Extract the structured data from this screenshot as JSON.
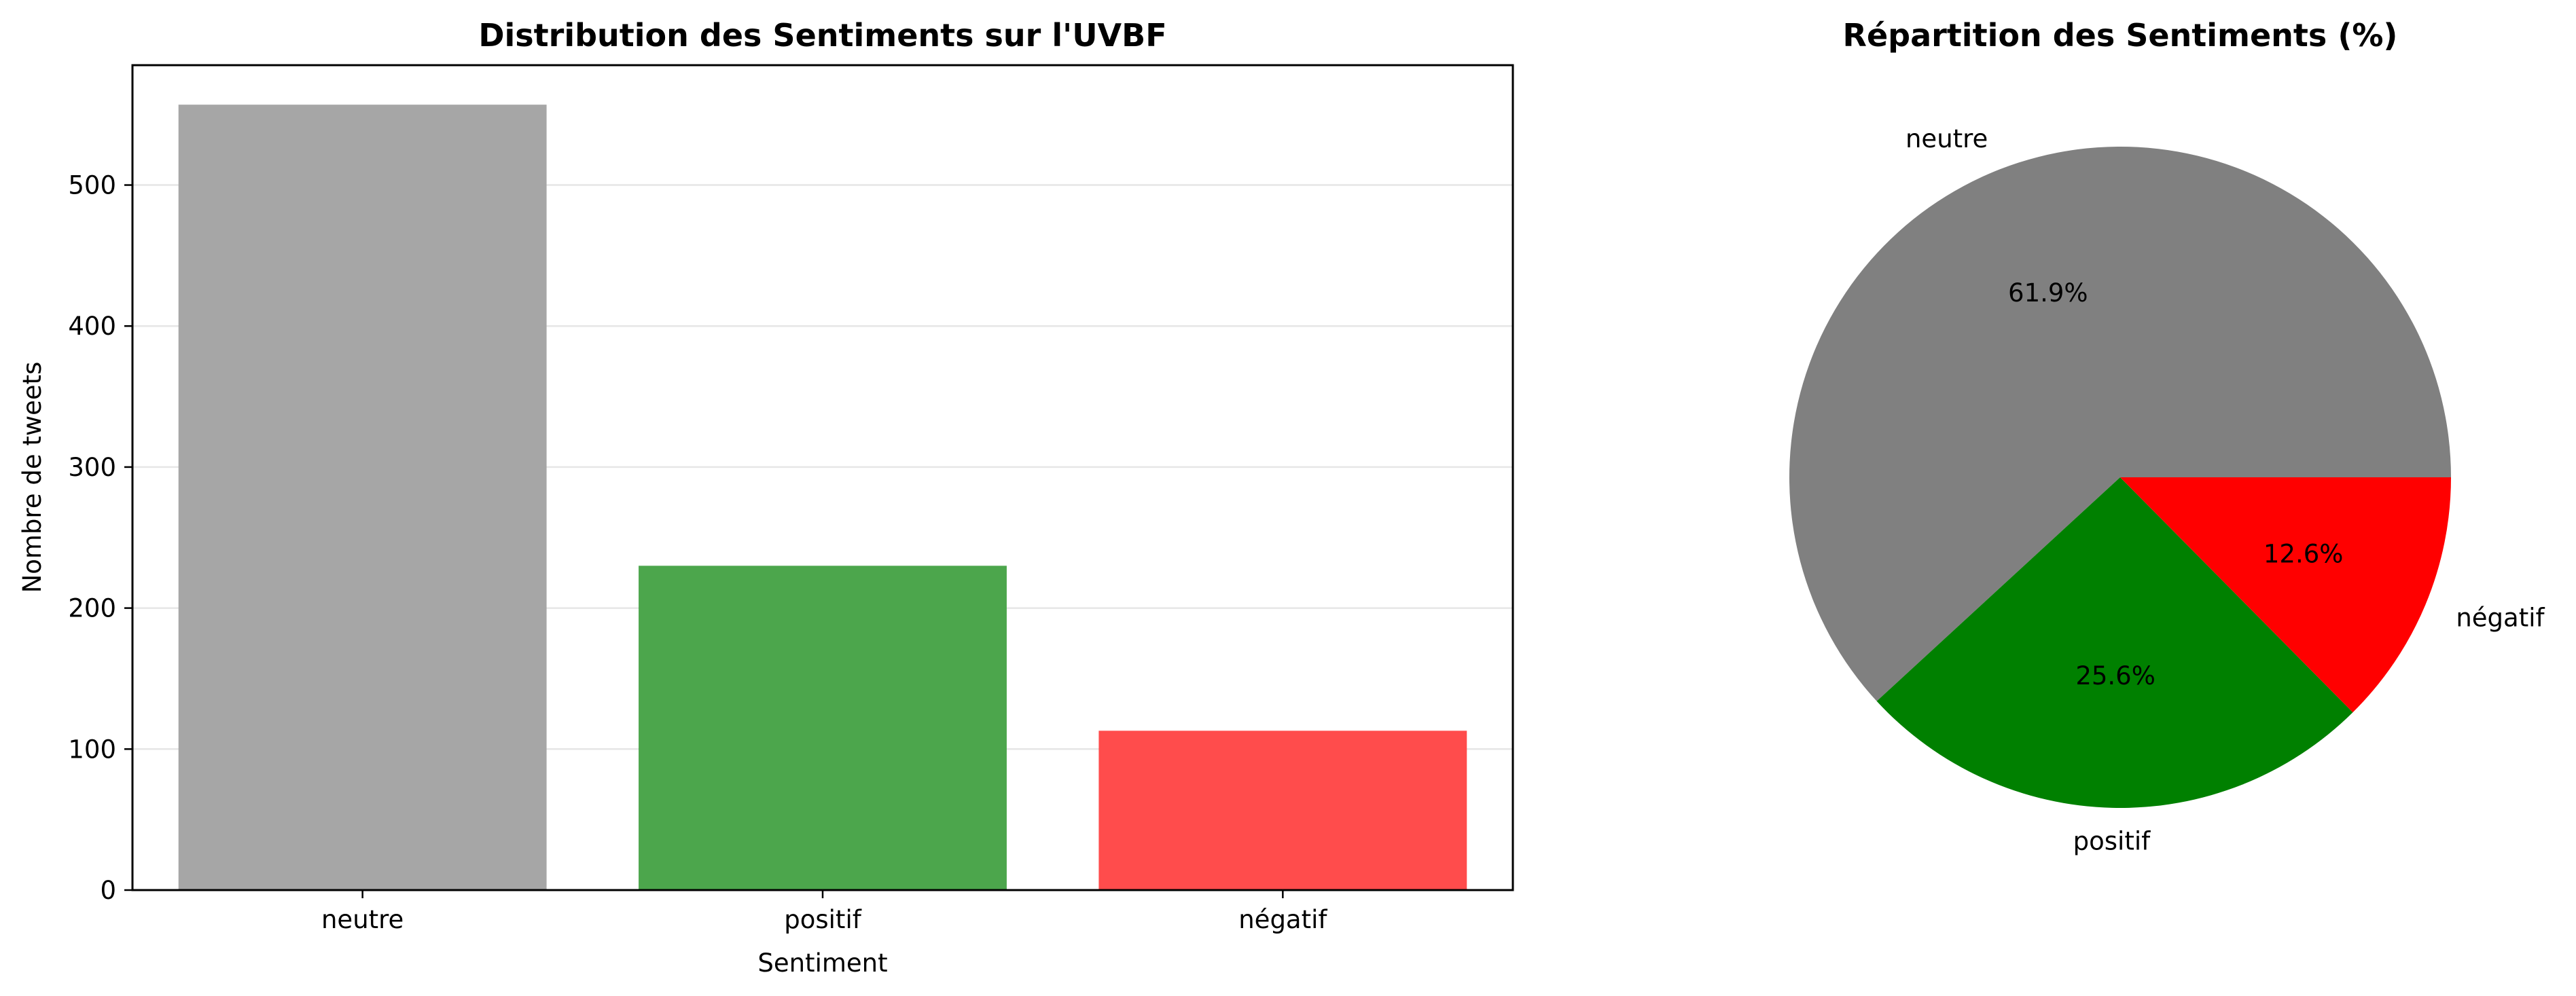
{
  "chart_data": [
    {
      "type": "bar",
      "title": "Distribution des Sentiments sur l'UVBF",
      "xlabel": "Sentiment",
      "ylabel": "Nombre de tweets",
      "categories": [
        "neutre",
        "positif",
        "négatif"
      ],
      "values": [
        557,
        230,
        113
      ],
      "colors": [
        "#a6a6a6",
        "#4ca64c",
        "#ff4c4c"
      ],
      "ylim": [
        0,
        585
      ],
      "yticks": [
        0,
        100,
        200,
        300,
        400,
        500
      ],
      "grid": "horizontal"
    },
    {
      "type": "pie",
      "title": "Répartition des Sentiments (%)",
      "categories": [
        "neutre",
        "positif",
        "négatif"
      ],
      "values": [
        61.9,
        25.6,
        12.6
      ],
      "value_labels": [
        "61.9%",
        "25.6%",
        "12.6%"
      ],
      "colors": [
        "#808080",
        "#008000",
        "#ff0000"
      ]
    }
  ]
}
